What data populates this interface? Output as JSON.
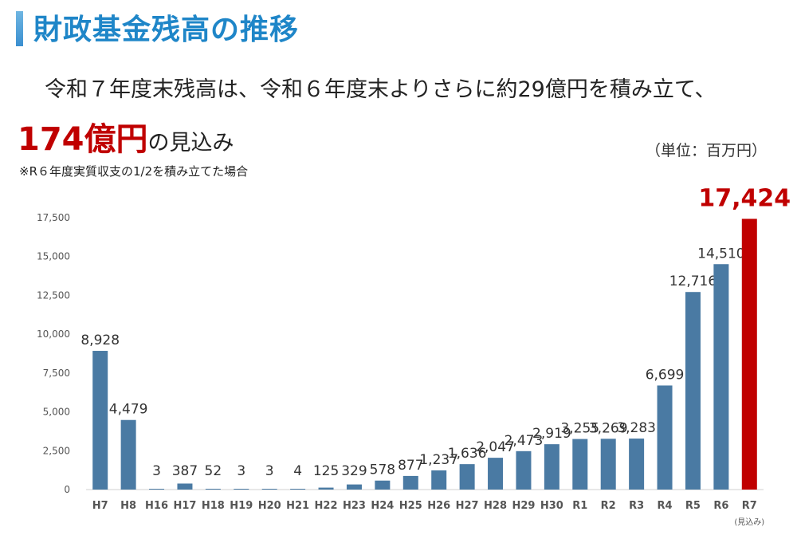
{
  "title": "財政基金残高の推移",
  "headline": "令和７年度末残高は、令和６年度末よりさらに約29億円を積み立て、",
  "amount": "174億円",
  "amount_suffix": "の見込み",
  "note": "※R６年度実質収支の1/2を積み立てた場合",
  "unit": "（単位：百万円）",
  "chart_data": {
    "type": "bar",
    "categories": [
      "H7",
      "H8",
      "H16",
      "H17",
      "H18",
      "H19",
      "H20",
      "H21",
      "H22",
      "H23",
      "H24",
      "H25",
      "H26",
      "H27",
      "H28",
      "H29",
      "H30",
      "R1",
      "R2",
      "R3",
      "R4",
      "R5",
      "R6",
      "R7"
    ],
    "values": [
      8928,
      4479,
      3,
      387,
      52,
      3,
      3,
      4,
      125,
      329,
      578,
      877,
      1237,
      1636,
      2047,
      2473,
      2919,
      3255,
      3269,
      3283,
      6699,
      12716,
      14510,
      17424
    ],
    "value_labels": [
      "8,928",
      "4,479",
      "3",
      "387",
      "52",
      "3",
      "3",
      "4",
      "125",
      "329",
      "578",
      "877",
      "1,237",
      "1,636",
      "2,047",
      "2,473",
      "2,919",
      "3,255",
      "3,269",
      "3,283",
      "6,699",
      "12,716",
      "14,510",
      "17,424"
    ],
    "yticks": [
      0,
      2500,
      5000,
      7500,
      10000,
      12500,
      15000,
      17500
    ],
    "ytick_labels": [
      "0",
      "2,500",
      "5,000",
      "7,500",
      "10,000",
      "12,500",
      "15,000",
      "17,500"
    ],
    "ylim": [
      0,
      17500
    ],
    "highlight_index": 23,
    "highlight_note": "(見込み)",
    "colors": {
      "bar": "#4a7aa3",
      "highlight": "#c00000"
    }
  }
}
